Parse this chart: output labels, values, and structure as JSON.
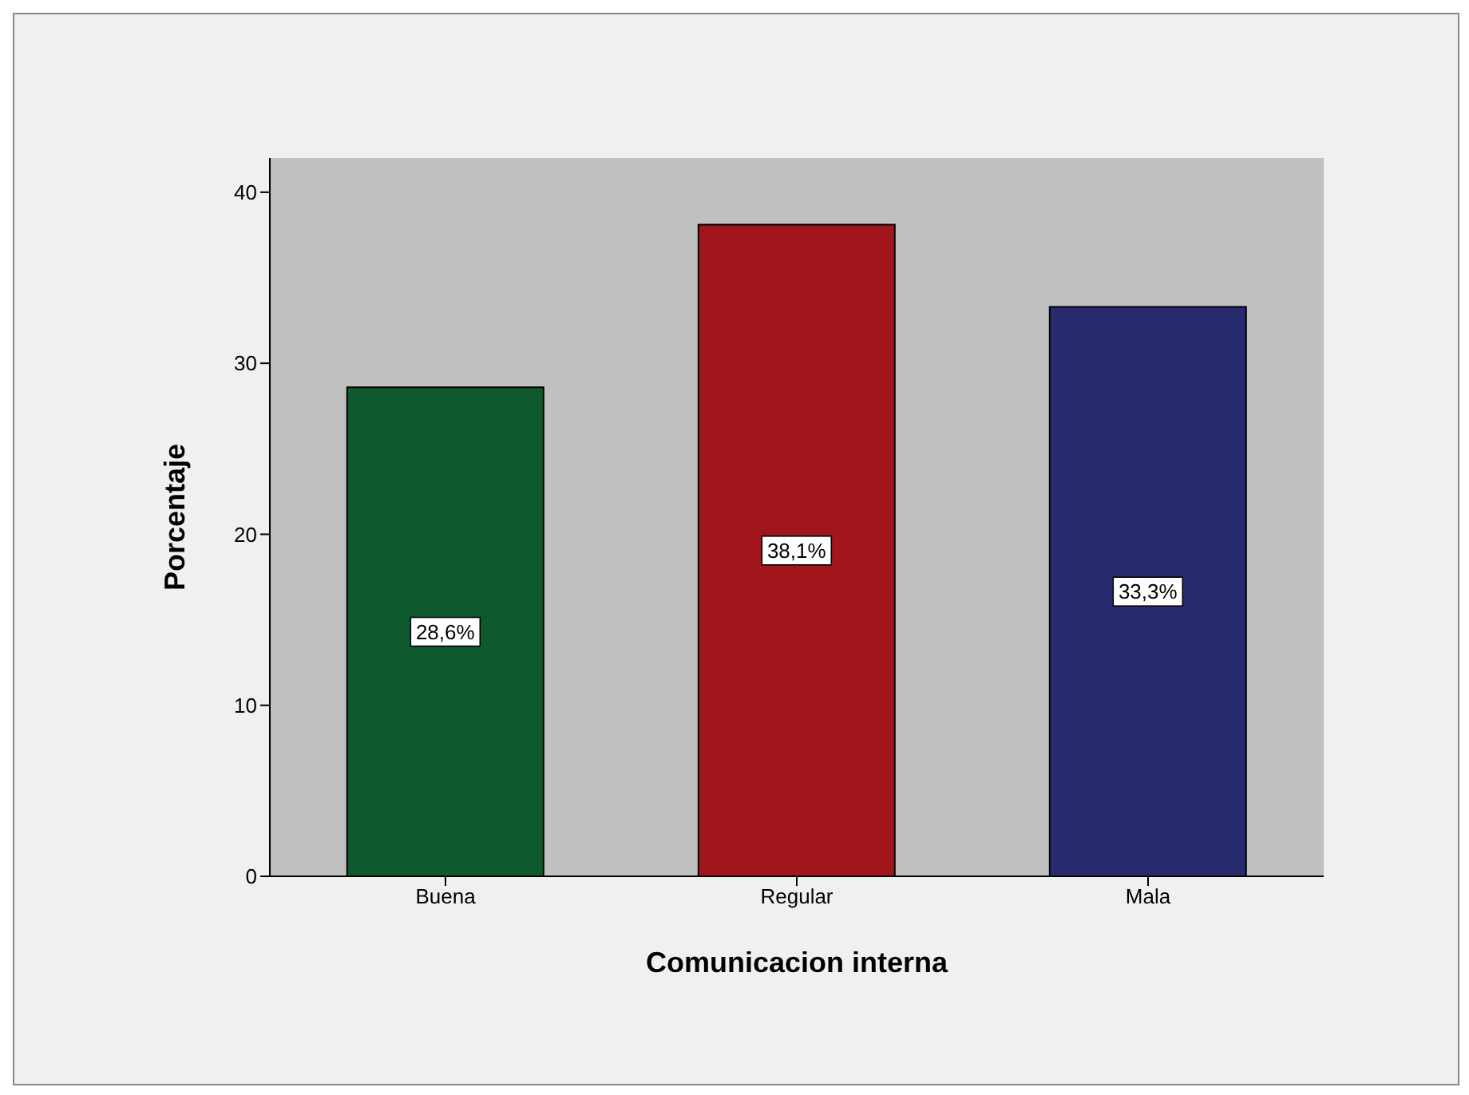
{
  "chart_data": {
    "type": "bar",
    "xlabel": "Comunicacion interna",
    "ylabel": "Porcentaje",
    "categories": [
      "Buena",
      "Regular",
      "Mala"
    ],
    "values": [
      28.6,
      38.1,
      33.3
    ],
    "value_labels": [
      "28,6%",
      "38,1%",
      "33,3%"
    ],
    "colors": [
      "#0e5a2e",
      "#a0161b",
      "#282a6e"
    ],
    "ylim": [
      0,
      42
    ],
    "yticks": [
      0,
      10,
      20,
      30,
      40
    ],
    "grid": false
  }
}
